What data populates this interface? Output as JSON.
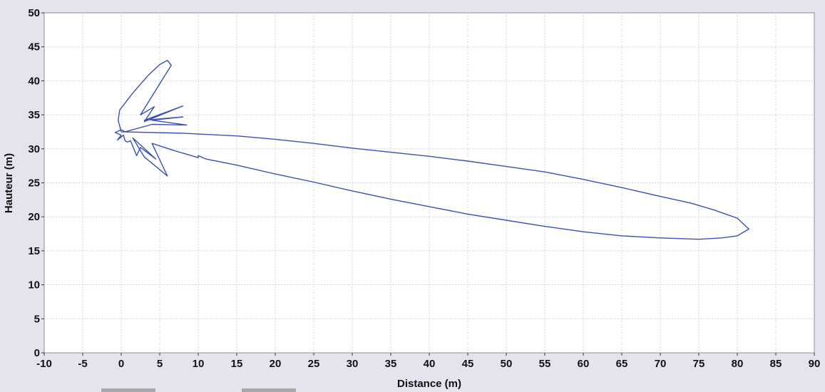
{
  "chart_data": {
    "type": "line",
    "title": "",
    "xlabel": "Distance (m)",
    "ylabel": "Hauteur (m)",
    "xlim": [
      -10,
      90
    ],
    "ylim": [
      0,
      50
    ],
    "x_ticks": [
      -10,
      -5,
      0,
      5,
      10,
      15,
      20,
      25,
      30,
      35,
      40,
      45,
      50,
      55,
      60,
      65,
      70,
      75,
      80,
      85,
      90
    ],
    "y_ticks": [
      0,
      5,
      10,
      15,
      20,
      25,
      30,
      35,
      40,
      45,
      50
    ],
    "grid": true,
    "legend": "none",
    "colors": {
      "series": "#3a50b5",
      "plot_background": "#ffffff",
      "page_background": "#e6e2ee",
      "grid": "#cdd3de"
    },
    "series": [
      {
        "points": [
          [
            0,
            32.5
          ],
          [
            8,
            32.3
          ],
          [
            15,
            31.9
          ],
          [
            20,
            31.4
          ],
          [
            25,
            30.8
          ],
          [
            30,
            30.1
          ],
          [
            35,
            29.5
          ],
          [
            40,
            28.9
          ],
          [
            45,
            28.2
          ],
          [
            50,
            27.4
          ],
          [
            55,
            26.6
          ],
          [
            60,
            25.5
          ],
          [
            65,
            24.3
          ],
          [
            70,
            23.0
          ],
          [
            74,
            22.0
          ],
          [
            77,
            21.0
          ],
          [
            80,
            19.8
          ],
          [
            81.5,
            18.2
          ],
          [
            80,
            17.2
          ],
          [
            78,
            16.9
          ],
          [
            75,
            16.7
          ],
          [
            70,
            16.9
          ],
          [
            65,
            17.2
          ],
          [
            60,
            17.8
          ],
          [
            55,
            18.6
          ],
          [
            50,
            19.5
          ],
          [
            45,
            20.4
          ],
          [
            40,
            21.5
          ],
          [
            35,
            22.6
          ],
          [
            30,
            23.8
          ],
          [
            25,
            25.1
          ],
          [
            20,
            26.3
          ],
          [
            15,
            27.6
          ],
          [
            11,
            28.5
          ],
          [
            10,
            29.0
          ],
          [
            10,
            28.7
          ],
          [
            7,
            29.7
          ],
          [
            4,
            30.8
          ],
          [
            6,
            26.0
          ],
          [
            3,
            28.8
          ],
          [
            1.5,
            31.6
          ],
          [
            4.5,
            28.5
          ],
          [
            2.5,
            30.2
          ],
          [
            2,
            29.0
          ],
          [
            1.2,
            31.2
          ],
          [
            0.8,
            31.0
          ],
          [
            0.5,
            31.2
          ],
          [
            0.3,
            32.0
          ],
          [
            -0.5,
            31.3
          ],
          [
            0,
            32.0
          ],
          [
            -0.8,
            32.4
          ],
          [
            0,
            32.8
          ],
          [
            0.5,
            32.5
          ],
          [
            4,
            33.6
          ],
          [
            8.5,
            33.5
          ],
          [
            4,
            34.2
          ],
          [
            8,
            34.7
          ],
          [
            3,
            34.2
          ],
          [
            8,
            36.3
          ],
          [
            3,
            34.0
          ],
          [
            4.3,
            36.2
          ],
          [
            2.5,
            35.0
          ],
          [
            6.5,
            42.3
          ],
          [
            6.0,
            43.0
          ],
          [
            5.0,
            42.4
          ],
          [
            3.5,
            40.8
          ],
          [
            1.5,
            38.2
          ],
          [
            -0.2,
            35.7
          ],
          [
            -0.4,
            34.2
          ],
          [
            0,
            32.5
          ]
        ]
      }
    ]
  }
}
